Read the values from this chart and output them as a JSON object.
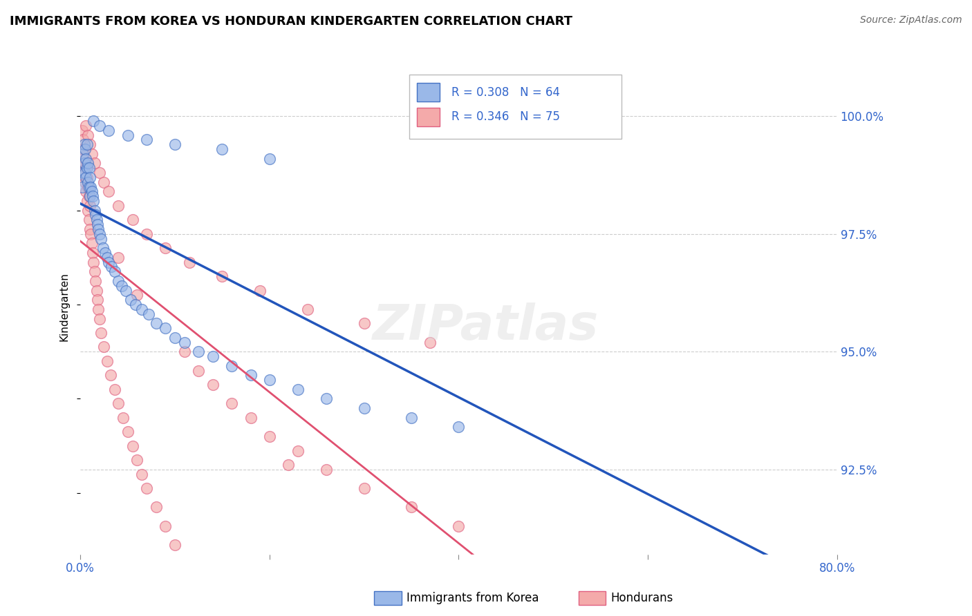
{
  "title": "IMMIGRANTS FROM KOREA VS HONDURAN KINDERGARTEN CORRELATION CHART",
  "source_text": "Source: ZipAtlas.com",
  "ylabel": "Kindergarten",
  "xlim": [
    0.0,
    0.8
  ],
  "ylim": [
    0.907,
    1.012
  ],
  "yticks": [
    0.925,
    0.95,
    0.975,
    1.0
  ],
  "ytick_labels": [
    "92.5%",
    "95.0%",
    "97.5%",
    "100.0%"
  ],
  "korea_R": 0.308,
  "korea_N": 64,
  "honduran_R": 0.346,
  "honduran_N": 75,
  "korea_color": "#9AB8E8",
  "honduran_color": "#F4AAAA",
  "korea_edge_color": "#4472C4",
  "honduran_edge_color": "#E06080",
  "korea_line_color": "#2255BB",
  "honduran_line_color": "#E05070",
  "legend_korea_label": "Immigrants from Korea",
  "legend_honduran_label": "Hondurans",
  "korea_trend": [
    0.975,
    0.998
  ],
  "honduran_trend": [
    0.962,
    0.998
  ],
  "korea_x": [
    0.002,
    0.003,
    0.003,
    0.004,
    0.004,
    0.005,
    0.005,
    0.006,
    0.006,
    0.007,
    0.007,
    0.008,
    0.008,
    0.009,
    0.009,
    0.01,
    0.01,
    0.011,
    0.012,
    0.013,
    0.014,
    0.015,
    0.016,
    0.017,
    0.018,
    0.019,
    0.02,
    0.022,
    0.024,
    0.026,
    0.028,
    0.03,
    0.033,
    0.036,
    0.04,
    0.044,
    0.048,
    0.053,
    0.058,
    0.065,
    0.072,
    0.08,
    0.09,
    0.1,
    0.11,
    0.125,
    0.14,
    0.16,
    0.18,
    0.2,
    0.23,
    0.26,
    0.3,
    0.35,
    0.4,
    0.014,
    0.02,
    0.03,
    0.05,
    0.07,
    0.1,
    0.15,
    0.2,
    0.45
  ],
  "korea_y": [
    0.985,
    0.988,
    0.992,
    0.99,
    0.994,
    0.988,
    0.993,
    0.987,
    0.991,
    0.989,
    0.994,
    0.986,
    0.99,
    0.985,
    0.989,
    0.983,
    0.987,
    0.985,
    0.984,
    0.983,
    0.982,
    0.98,
    0.979,
    0.978,
    0.977,
    0.976,
    0.975,
    0.974,
    0.972,
    0.971,
    0.97,
    0.969,
    0.968,
    0.967,
    0.965,
    0.964,
    0.963,
    0.961,
    0.96,
    0.959,
    0.958,
    0.956,
    0.955,
    0.953,
    0.952,
    0.95,
    0.949,
    0.947,
    0.945,
    0.944,
    0.942,
    0.94,
    0.938,
    0.936,
    0.934,
    0.999,
    0.998,
    0.997,
    0.996,
    0.995,
    0.994,
    0.993,
    0.991,
    0.999
  ],
  "honduran_x": [
    0.002,
    0.002,
    0.003,
    0.003,
    0.004,
    0.004,
    0.005,
    0.005,
    0.006,
    0.006,
    0.007,
    0.007,
    0.008,
    0.008,
    0.009,
    0.009,
    0.01,
    0.01,
    0.011,
    0.012,
    0.013,
    0.014,
    0.015,
    0.016,
    0.017,
    0.018,
    0.019,
    0.02,
    0.022,
    0.025,
    0.028,
    0.032,
    0.036,
    0.04,
    0.045,
    0.05,
    0.055,
    0.06,
    0.065,
    0.07,
    0.08,
    0.09,
    0.1,
    0.11,
    0.125,
    0.14,
    0.16,
    0.18,
    0.2,
    0.23,
    0.26,
    0.3,
    0.35,
    0.4,
    0.006,
    0.008,
    0.01,
    0.012,
    0.015,
    0.02,
    0.025,
    0.03,
    0.04,
    0.055,
    0.07,
    0.09,
    0.115,
    0.15,
    0.19,
    0.24,
    0.3,
    0.37,
    0.04,
    0.06,
    0.22
  ],
  "honduran_y": [
    0.993,
    0.997,
    0.99,
    0.995,
    0.988,
    0.993,
    0.986,
    0.991,
    0.984,
    0.989,
    0.982,
    0.987,
    0.98,
    0.985,
    0.978,
    0.983,
    0.976,
    0.981,
    0.975,
    0.973,
    0.971,
    0.969,
    0.967,
    0.965,
    0.963,
    0.961,
    0.959,
    0.957,
    0.954,
    0.951,
    0.948,
    0.945,
    0.942,
    0.939,
    0.936,
    0.933,
    0.93,
    0.927,
    0.924,
    0.921,
    0.917,
    0.913,
    0.909,
    0.95,
    0.946,
    0.943,
    0.939,
    0.936,
    0.932,
    0.929,
    0.925,
    0.921,
    0.917,
    0.913,
    0.998,
    0.996,
    0.994,
    0.992,
    0.99,
    0.988,
    0.986,
    0.984,
    0.981,
    0.978,
    0.975,
    0.972,
    0.969,
    0.966,
    0.963,
    0.959,
    0.956,
    0.952,
    0.97,
    0.962,
    0.926
  ]
}
